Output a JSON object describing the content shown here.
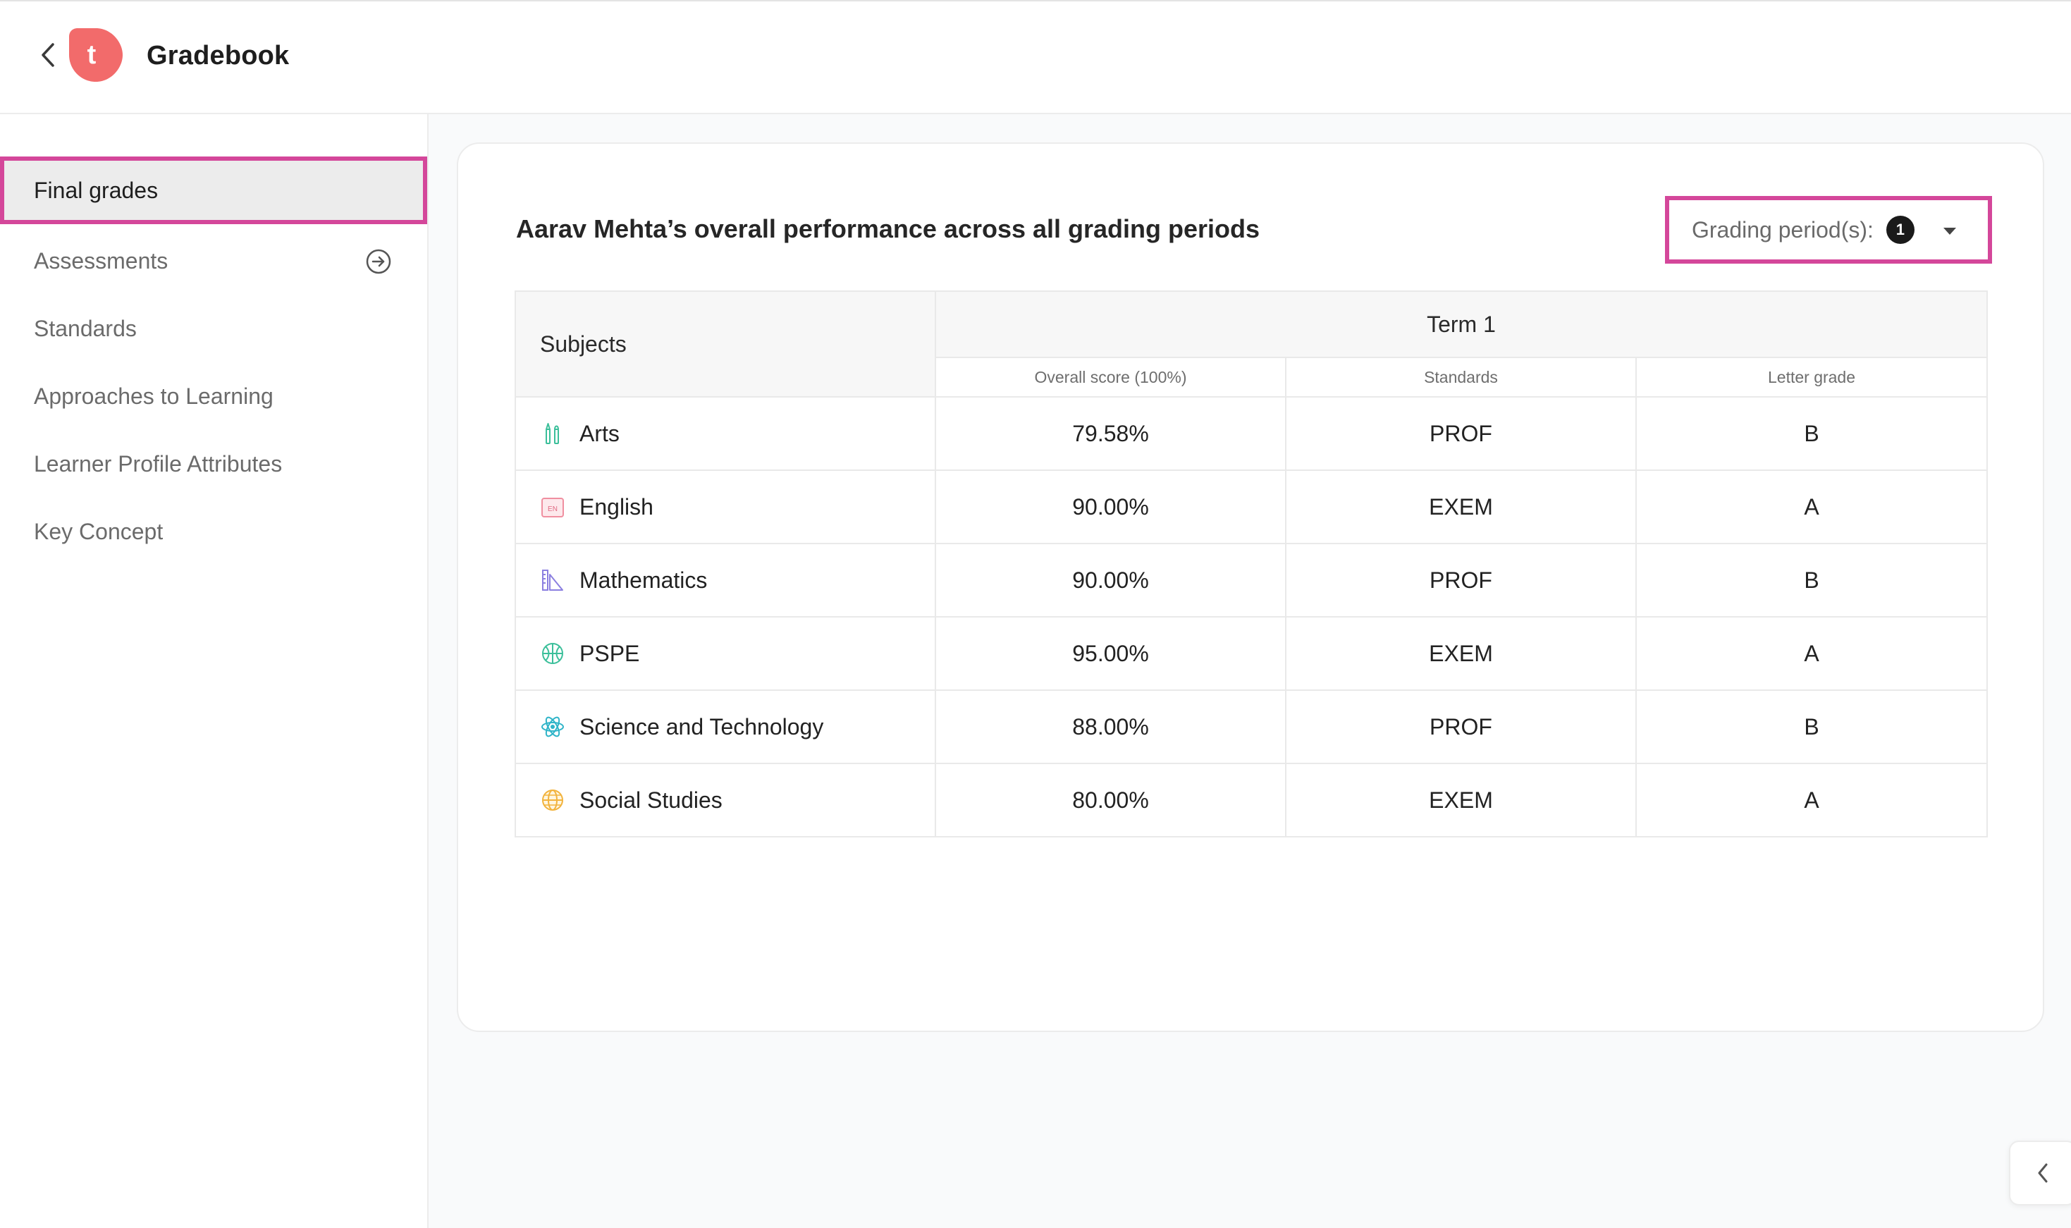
{
  "header": {
    "title": "Gradebook",
    "logo_letter": "t",
    "logo_color": "#f26b6b"
  },
  "sidebar": {
    "items": [
      {
        "label": "Final grades",
        "active": true
      },
      {
        "label": "Assessments"
      },
      {
        "label": "Standards"
      },
      {
        "label": "Approaches to Learning"
      },
      {
        "label": "Learner Profile Attributes"
      },
      {
        "label": "Key Concept"
      }
    ]
  },
  "main": {
    "title": "Aarav Mehta’s overall performance across all grading periods",
    "grading_period": {
      "label": "Grading period(s):",
      "count": "1"
    },
    "table": {
      "subjects_header": "Subjects",
      "term_header": "Term 1",
      "columns": [
        "Overall score (100%)",
        "Standards",
        "Letter grade"
      ],
      "rows": [
        {
          "subject": "Arts",
          "icon": "arts-icon",
          "score": "79.58%",
          "standard": "PROF",
          "grade": "B"
        },
        {
          "subject": "English",
          "icon": "english-icon",
          "score": "90.00%",
          "standard": "EXEM",
          "grade": "A"
        },
        {
          "subject": "Mathematics",
          "icon": "mathematics-icon",
          "score": "90.00%",
          "standard": "PROF",
          "grade": "B"
        },
        {
          "subject": "PSPE",
          "icon": "ball-icon",
          "score": "95.00%",
          "standard": "EXEM",
          "grade": "A"
        },
        {
          "subject": "Science and Technology",
          "icon": "atom-icon",
          "score": "88.00%",
          "standard": "PROF",
          "grade": "B"
        },
        {
          "subject": "Social Studies",
          "icon": "globe-icon",
          "score": "80.00%",
          "standard": "EXEM",
          "grade": "A"
        }
      ]
    }
  },
  "colors": {
    "highlight": "#d4479a",
    "accent": "#f26b6b"
  }
}
